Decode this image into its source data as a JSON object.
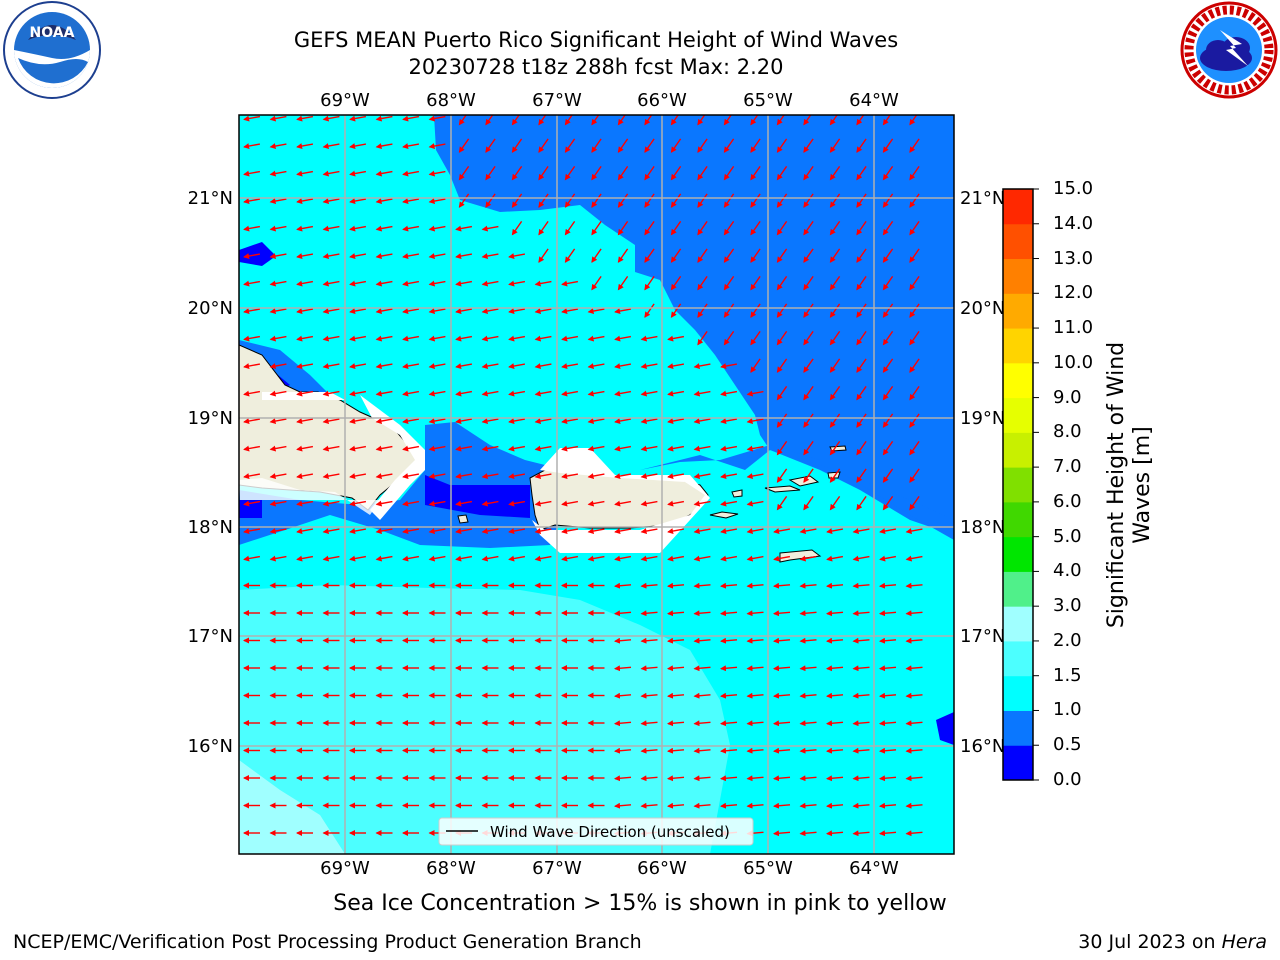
{
  "header": {
    "title_line1": "GEFS MEAN Puerto Rico Significant Height of Wind Waves",
    "title_line2": "20230728 t18z 288h fcst   Max: 2.20",
    "left_logo": "noaa-logo",
    "right_logo": "national-weather-service-logo"
  },
  "map": {
    "lon_labels": [
      "69°W",
      "68°W",
      "67°W",
      "66°W",
      "65°W",
      "64°W"
    ],
    "lat_labels": [
      "21°N",
      "20°N",
      "19°N",
      "18°N",
      "17°N",
      "16°N"
    ],
    "land_color": "#efeedd",
    "arrow_color": "#ff0000",
    "grid": true,
    "legend_text": "Wind Wave Direction (unscaled)"
  },
  "colorbar": {
    "label": "Significant Height of Wind Waves [m]",
    "ticks": [
      "0.0",
      "0.5",
      "1.0",
      "1.5",
      "2.0",
      "3.0",
      "4.0",
      "5.0",
      "6.0",
      "7.0",
      "8.0",
      "9.0",
      "10.0",
      "11.0",
      "12.0",
      "13.0",
      "14.0",
      "15.0"
    ],
    "colors": [
      "#0000ff",
      "#0a77ff",
      "#00ffff",
      "#4cffff",
      "#a0ffff",
      "#50f08a",
      "#00e600",
      "#40d800",
      "#80e000",
      "#c8f000",
      "#e6ff00",
      "#ffff00",
      "#ffd400",
      "#ffaa00",
      "#ff8000",
      "#ff5000",
      "#ff2800",
      "#ff0000"
    ]
  },
  "footer": {
    "ice_note": "Sea Ice Concentration > 15% is shown in pink to yellow",
    "branch": "NCEP/EMC/Verification Post Processing Product Generation Branch",
    "date": "30 Jul 2023 on ",
    "host": "Hera"
  }
}
